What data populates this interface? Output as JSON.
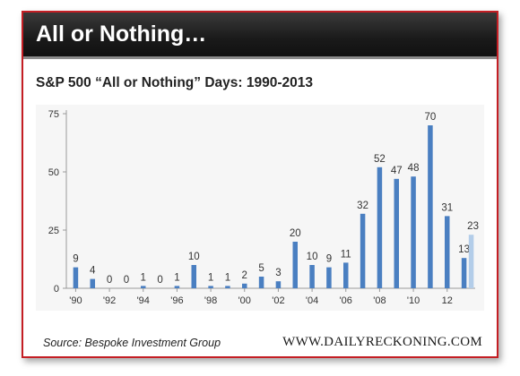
{
  "header": {
    "title": "All or Nothing…"
  },
  "subtitle": "S&P 500 “All or Nothing” Days: 1990-2013",
  "source": "Source: Bespoke Investment Group",
  "brand": "WWW.DAILYRECKONING.COM",
  "colors": {
    "bar": "#4a7fc1",
    "bar_highlight": "#b3cde9",
    "border": "#c41e24"
  },
  "chart_data": {
    "type": "bar",
    "categories": [
      "1990",
      "1991",
      "1992",
      "1993",
      "1994",
      "1995",
      "1996",
      "1997",
      "1998",
      "1999",
      "2000",
      "2001",
      "2002",
      "2003",
      "2004",
      "2005",
      "2006",
      "2007",
      "2008",
      "2009",
      "2010",
      "2011",
      "2012",
      "2013"
    ],
    "values": [
      9,
      4,
      0,
      0,
      1,
      0,
      1,
      10,
      1,
      1,
      2,
      5,
      3,
      20,
      10,
      9,
      11,
      32,
      52,
      47,
      48,
      70,
      31,
      13
    ],
    "data_labels": [
      "9",
      "4",
      "0",
      "0",
      "1",
      "0",
      "1",
      "10",
      "1",
      "1",
      "2",
      "5",
      "3",
      "20",
      "10",
      "9",
      "11",
      "32",
      "52",
      "47",
      "48",
      "70",
      "31",
      "13"
    ],
    "extra_bar": {
      "category": "2013",
      "value": 23,
      "label": "23"
    },
    "x_tick_labels": [
      "'90",
      "'92",
      "'94",
      "'96",
      "'98",
      "'00",
      "'02",
      "'04",
      "'06",
      "'08",
      "'10",
      "12"
    ],
    "y_ticks": [
      0,
      25,
      50,
      75
    ],
    "ylim": [
      0,
      75
    ],
    "title": "S&P 500 “All or Nothing” Days: 1990-2013",
    "xlabel": "",
    "ylabel": "",
    "grid": false
  }
}
